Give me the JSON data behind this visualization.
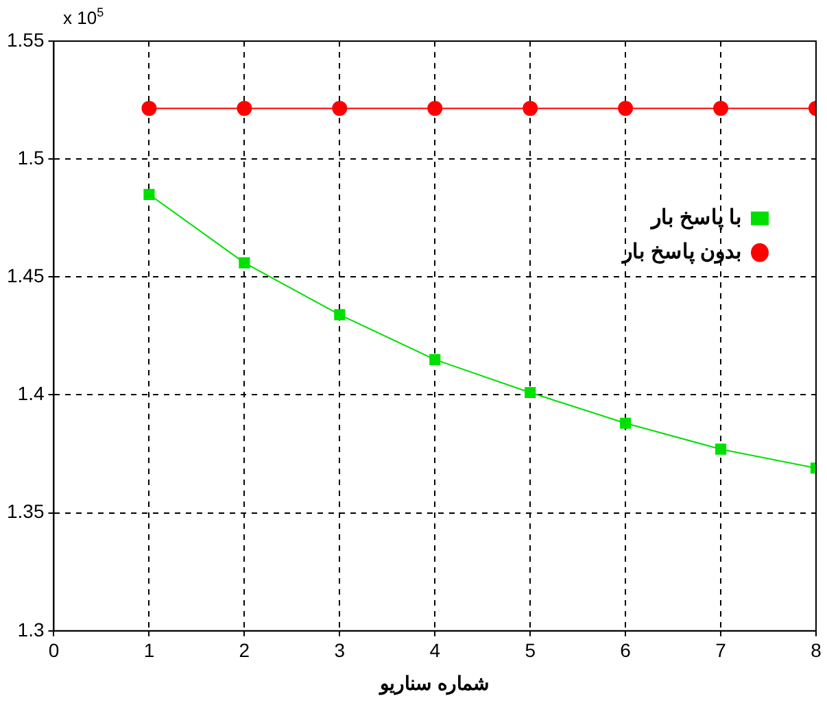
{
  "chart_data": {
    "type": "line",
    "xlabel": "شماره سناريو",
    "x": [
      1,
      2,
      3,
      4,
      5,
      6,
      7,
      8
    ],
    "series": [
      {
        "name": "با پاسخ بار",
        "color": "#00e000",
        "marker": "square",
        "values": [
          1.485,
          1.456,
          1.434,
          1.415,
          1.401,
          1.388,
          1.377,
          1.369
        ]
      },
      {
        "name": "بدون پاسخ بار",
        "color": "#ff0000",
        "marker": "circle",
        "values": [
          1.5215,
          1.5215,
          1.5215,
          1.5215,
          1.5215,
          1.5215,
          1.5215,
          1.5215
        ]
      }
    ],
    "xlim": [
      0,
      8
    ],
    "xticks": [
      0,
      1,
      2,
      3,
      4,
      5,
      6,
      7,
      8
    ],
    "ylim": [
      1.3,
      1.55
    ],
    "yticks": [
      1.3,
      1.35,
      1.4,
      1.45,
      1.5,
      1.55
    ],
    "annotations": [
      "x 10$^{5}$"
    ],
    "grid": true,
    "legend": "right",
    "line_style": "solid"
  }
}
